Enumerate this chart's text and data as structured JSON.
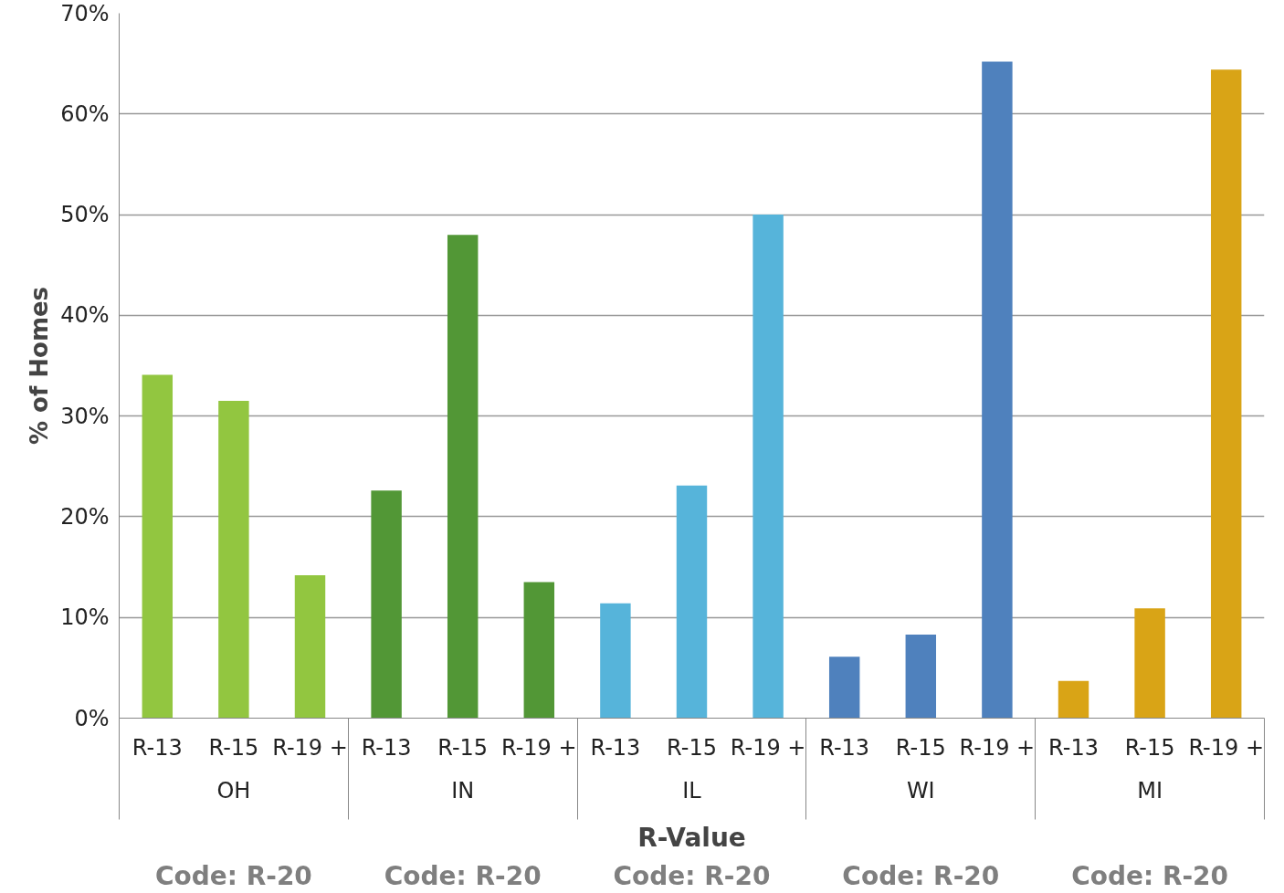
{
  "chart_data": {
    "type": "bar",
    "ylabel": "% of Homes",
    "xlabel": "R-Value",
    "categories": [
      "R-13",
      "R-15",
      "R-19 +",
      "R-13",
      "R-15",
      "R-19 +",
      "R-13",
      "R-15",
      "R-19 +",
      "R-13",
      "R-15",
      "R-19 +",
      "R-13",
      "R-15",
      "R-19 +"
    ],
    "values": [
      34.1,
      31.5,
      14.2,
      22.6,
      48.0,
      13.5,
      11.4,
      23.1,
      50.0,
      6.1,
      8.3,
      65.2,
      3.7,
      10.9,
      64.4
    ],
    "colors": [
      "#92c640",
      "#92c640",
      "#92c640",
      "#529736",
      "#529736",
      "#529736",
      "#56b4da",
      "#56b4da",
      "#56b4da",
      "#4f81bd",
      "#4f81bd",
      "#4f81bd",
      "#d9a416",
      "#d9a416",
      "#d9a416"
    ],
    "ylim": [
      0,
      70
    ],
    "yticks": [
      {
        "value": 0,
        "label": "0%"
      },
      {
        "value": 10,
        "label": "10%"
      },
      {
        "value": 20,
        "label": "20%"
      },
      {
        "value": 30,
        "label": "30%"
      },
      {
        "value": 40,
        "label": "40%"
      },
      {
        "value": 50,
        "label": "50%"
      },
      {
        "value": 60,
        "label": "60%"
      },
      {
        "value": 70,
        "label": "70%"
      }
    ],
    "grid": "y",
    "annotations": [
      "OH",
      "IN",
      "IL",
      "WI",
      "MI",
      "Code: R-20",
      "Code: R-20",
      "Code: R-20",
      "Code: R-20",
      "Code: R-20"
    ]
  }
}
